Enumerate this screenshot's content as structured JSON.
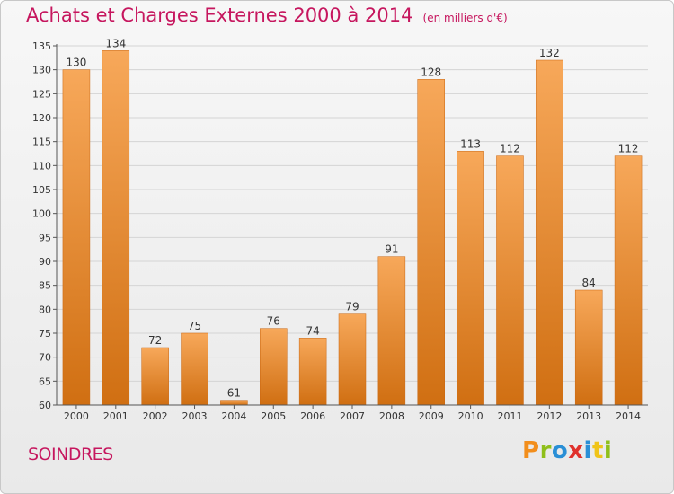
{
  "header": {
    "title": "Achats et Charges Externes 2000 à 2014",
    "subtitle": "(en milliers d'€)"
  },
  "footer": {
    "city": "SOINDRES",
    "brand": "Proxiti"
  },
  "colors": {
    "accent": "#c6165e",
    "bar_top": "#f7a85a",
    "bar_bottom": "#d06f12"
  },
  "chart_data": {
    "type": "bar",
    "title": "Achats et Charges Externes 2000 à 2014",
    "subtitle": "(en milliers d'€)",
    "categories": [
      "2000",
      "2001",
      "2002",
      "2003",
      "2004",
      "2005",
      "2006",
      "2007",
      "2008",
      "2009",
      "2010",
      "2011",
      "2012",
      "2013",
      "2014"
    ],
    "values": [
      130,
      134,
      72,
      75,
      61,
      76,
      74,
      79,
      91,
      128,
      113,
      112,
      132,
      84,
      112
    ],
    "ylim": [
      60,
      135
    ],
    "yticks": [
      60,
      65,
      70,
      75,
      80,
      85,
      90,
      95,
      100,
      105,
      110,
      115,
      120,
      125,
      130,
      135
    ],
    "grid": true,
    "data_labels": true
  }
}
